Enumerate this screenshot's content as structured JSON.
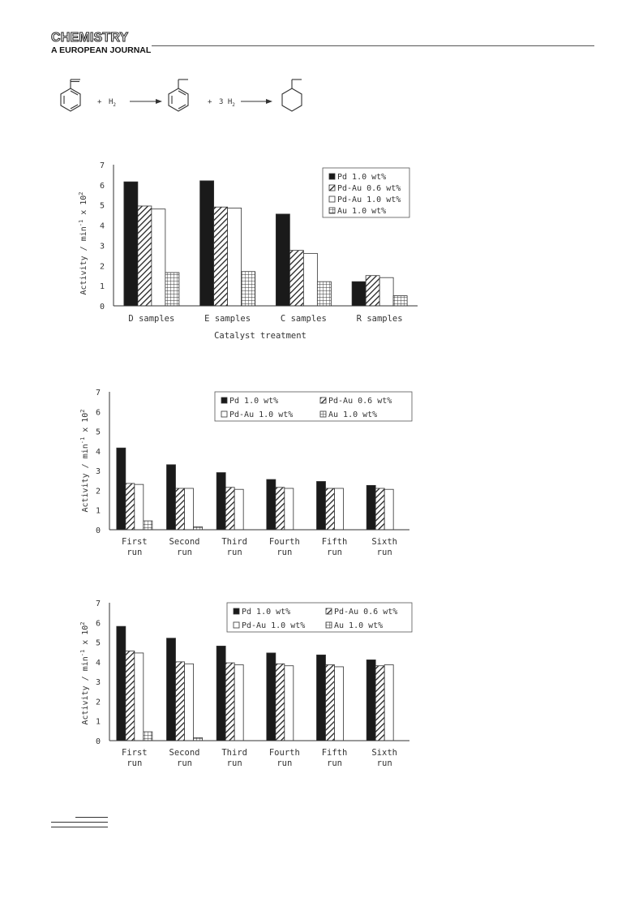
{
  "header": {
    "journal_title": "CHEMISTRY",
    "journal_subtitle": "A EUROPEAN JOURNAL"
  },
  "scheme": {
    "plus1": "+",
    "h2": "H",
    "h2_sub": "2",
    "plus2": "+",
    "h2b_coef": "3 H",
    "h2b_sub": "2"
  },
  "colors": {
    "pd": "#1a1a1a",
    "axis": "#333333",
    "bar_outline": "#333333"
  },
  "chart_data": [
    {
      "type": "bar",
      "categories": [
        "D samples",
        "E samples",
        "C samples",
        "R samples"
      ],
      "series": [
        {
          "name": "Pd 1.0 wt%",
          "pattern": "solid",
          "values": [
            6.15,
            6.2,
            4.55,
            1.2
          ]
        },
        {
          "name": "Pd-Au 0.6 wt%",
          "pattern": "hatch",
          "values": [
            4.95,
            4.9,
            2.75,
            1.5
          ]
        },
        {
          "name": "Pd-Au 1.0 wt%",
          "pattern": "empty",
          "values": [
            4.8,
            4.85,
            2.6,
            1.4
          ]
        },
        {
          "name": "Au 1.0 wt%",
          "pattern": "grid",
          "values": [
            1.65,
            1.7,
            1.2,
            0.5
          ]
        }
      ],
      "ylim": [
        0,
        7
      ],
      "yticks": [
        "0",
        "1",
        "2",
        "3",
        "4",
        "5",
        "6",
        "7"
      ],
      "ylabel": "Activity / min",
      "ylabel_sup": "-1",
      "ylabel_tail": " x 10",
      "ylabel_sup2": "2",
      "xlabel": "Catalyst treatment",
      "legend": "top-right, single column",
      "grid": false
    },
    {
      "type": "bar",
      "categories": [
        [
          "First",
          "run"
        ],
        [
          "Second",
          "run"
        ],
        [
          "Third",
          "run"
        ],
        [
          "Fourth",
          "run"
        ],
        [
          "Fifth",
          "run"
        ],
        [
          "Sixth",
          "run"
        ]
      ],
      "series": [
        {
          "name": "Pd 1.0 wt%",
          "pattern": "solid",
          "values": [
            4.15,
            3.3,
            2.9,
            2.55,
            2.45,
            2.25
          ]
        },
        {
          "name": "Pd-Au 0.6 wt%",
          "pattern": "hatch",
          "values": [
            2.35,
            2.1,
            2.15,
            2.15,
            2.1,
            2.1
          ]
        },
        {
          "name": "Pd-Au 1.0 wt%",
          "pattern": "empty",
          "values": [
            2.3,
            2.1,
            2.05,
            2.1,
            2.1,
            2.05
          ]
        },
        {
          "name": "Au 1.0 wt%",
          "pattern": "grid",
          "values": [
            0.45,
            0.15,
            0,
            0,
            0,
            0
          ]
        }
      ],
      "ylim": [
        0,
        7
      ],
      "yticks": [
        "0",
        "1",
        "2",
        "3",
        "4",
        "5",
        "6",
        "7"
      ],
      "ylabel": "Activity / min",
      "ylabel_sup": "-1",
      "ylabel_tail": " x 10",
      "ylabel_sup2": "2",
      "xlabel": "",
      "legend": "top-right, two columns",
      "grid": false
    },
    {
      "type": "bar",
      "categories": [
        [
          "First",
          "run"
        ],
        [
          "Second",
          "run"
        ],
        [
          "Third",
          "run"
        ],
        [
          "Fourth",
          "run"
        ],
        [
          "Fifth",
          "run"
        ],
        [
          "Sixth",
          "run"
        ]
      ],
      "series": [
        {
          "name": "Pd 1.0 wt%",
          "pattern": "solid",
          "values": [
            5.8,
            5.2,
            4.8,
            4.45,
            4.35,
            4.1
          ]
        },
        {
          "name": "Pd-Au 0.6 wt%",
          "pattern": "hatch",
          "values": [
            4.55,
            4.0,
            3.95,
            3.9,
            3.85,
            3.8
          ]
        },
        {
          "name": "Pd-Au 1.0 wt%",
          "pattern": "empty",
          "values": [
            4.45,
            3.9,
            3.85,
            3.8,
            3.75,
            3.85
          ]
        },
        {
          "name": "Au 1.0 wt%",
          "pattern": "grid",
          "values": [
            0.45,
            0.15,
            0,
            0,
            0,
            0
          ]
        }
      ],
      "ylim": [
        0,
        7
      ],
      "yticks": [
        "0",
        "1",
        "2",
        "3",
        "4",
        "5",
        "6",
        "7"
      ],
      "ylabel": "Activity / min",
      "ylabel_sup": "-1",
      "ylabel_tail": " x 10",
      "ylabel_sup2": "2",
      "xlabel": "",
      "legend": "top-right, two columns",
      "grid": false
    }
  ]
}
